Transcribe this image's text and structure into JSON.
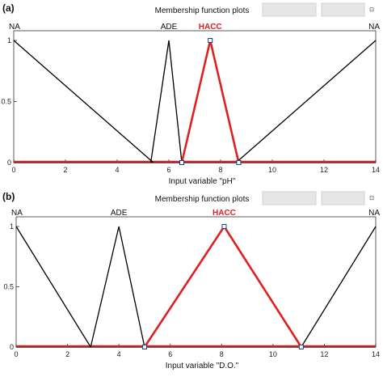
{
  "chart_data": [
    {
      "type": "line",
      "panel_letter": "(a)",
      "title": "Membership function plots",
      "xlabel": "Input variable \"pH\"",
      "xlim": [
        0,
        14
      ],
      "ylim": [
        0,
        1
      ],
      "xticks": [
        "0",
        "2",
        "4",
        "6",
        "8",
        "10",
        "12",
        "14"
      ],
      "yticks": [
        "0",
        "0.5",
        "1"
      ],
      "series": [
        {
          "name": "NA",
          "highlight": false,
          "color": "#000000",
          "points": [
            [
              0,
              1
            ],
            [
              5.4,
              0
            ]
          ],
          "label_x": 0,
          "label_align": "start"
        },
        {
          "name": "ADE",
          "highlight": false,
          "color": "#000000",
          "points": [
            [
              5.3,
              0
            ],
            [
              6.0,
              1
            ],
            [
              6.5,
              0
            ]
          ],
          "label_x": 6.0,
          "label_align": "middle"
        },
        {
          "name": "HACC",
          "highlight": true,
          "color": "#e02020",
          "points": [
            [
              6.5,
              0
            ],
            [
              7.6,
              1
            ],
            [
              8.7,
              0
            ]
          ],
          "label_x": 7.6,
          "label_align": "middle"
        },
        {
          "name": "NA",
          "highlight": false,
          "color": "#000000",
          "points": [
            [
              8.6,
              0
            ],
            [
              14,
              1
            ]
          ],
          "label_x": 14,
          "label_align": "end"
        }
      ],
      "highlight_baseline": [
        [
          0,
          0
        ],
        [
          14,
          0
        ]
      ],
      "markers": [
        [
          6.5,
          0
        ],
        [
          7.6,
          1
        ],
        [
          8.7,
          0
        ]
      ],
      "toolbar_glyph": "⊡"
    },
    {
      "type": "line",
      "panel_letter": "(b)",
      "title": "Membership function plots",
      "xlabel": "Input variable \"D.O.\"",
      "xlim": [
        0,
        14
      ],
      "ylim": [
        0,
        1
      ],
      "xticks": [
        "0",
        "2",
        "4",
        "6",
        "8",
        "10",
        "12",
        "14"
      ],
      "yticks": [
        "0",
        "0.5",
        "1"
      ],
      "series": [
        {
          "name": "NA",
          "highlight": false,
          "color": "#000000",
          "points": [
            [
              0,
              1
            ],
            [
              2.9,
              0
            ]
          ],
          "label_x": 0,
          "label_align": "start"
        },
        {
          "name": "ADE",
          "highlight": false,
          "color": "#000000",
          "points": [
            [
              2.9,
              0
            ],
            [
              4.0,
              1
            ],
            [
              5.0,
              0
            ]
          ],
          "label_x": 4.0,
          "label_align": "middle"
        },
        {
          "name": "HACC",
          "highlight": true,
          "color": "#e02020",
          "points": [
            [
              5.0,
              0
            ],
            [
              8.1,
              1
            ],
            [
              11.1,
              0
            ]
          ],
          "label_x": 8.1,
          "label_align": "middle"
        },
        {
          "name": "NA",
          "highlight": false,
          "color": "#000000",
          "points": [
            [
              11.1,
              0
            ],
            [
              14,
              1
            ]
          ],
          "label_x": 14,
          "label_align": "end"
        }
      ],
      "highlight_baseline": [
        [
          0,
          0
        ],
        [
          14,
          0
        ]
      ],
      "markers": [
        [
          5.0,
          0
        ],
        [
          8.1,
          1
        ],
        [
          11.1,
          0
        ]
      ],
      "toolbar_glyph": "⊡"
    }
  ]
}
